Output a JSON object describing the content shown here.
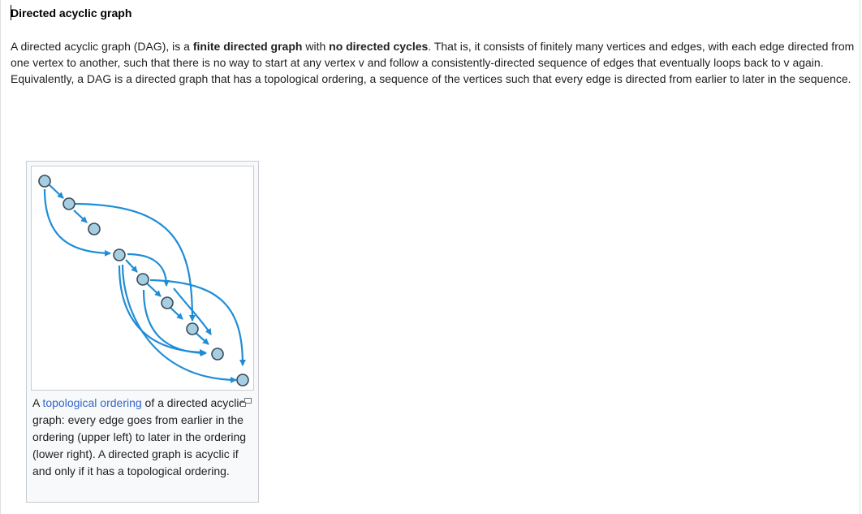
{
  "article": {
    "title": "Directed acyclic graph",
    "intro": {
      "p1": "A directed acyclic graph (DAG), is a ",
      "b1": "finite directed graph",
      "p2": " with ",
      "b2": "no directed cycles",
      "p3": ". That is, it consists of finitely many vertices and edges, with each edge directed from one vertex to another, such that there is no way to start at any vertex v and follow a consistently-directed sequence of edges that eventually loops back to v again. Equivalently, a DAG is a directed graph that has a topological ordering, a sequence of the vertices such that every edge is directed from earlier to later in the sequence."
    }
  },
  "figure": {
    "caption": {
      "pre": "A ",
      "link": "topological ordering",
      "post": " of a directed acyclic graph: every edge goes from earlier in the ordering (upper left) to later in the ordering (lower right). A directed graph is acyclic if and only if it has a topological ordering."
    },
    "magnify_icon": "magnify-clip-icon",
    "colors": {
      "edge": "#1f8dd6",
      "node_fill": "#a6cee3",
      "node_stroke": "#3a4a55",
      "link": "#3366cc"
    }
  }
}
